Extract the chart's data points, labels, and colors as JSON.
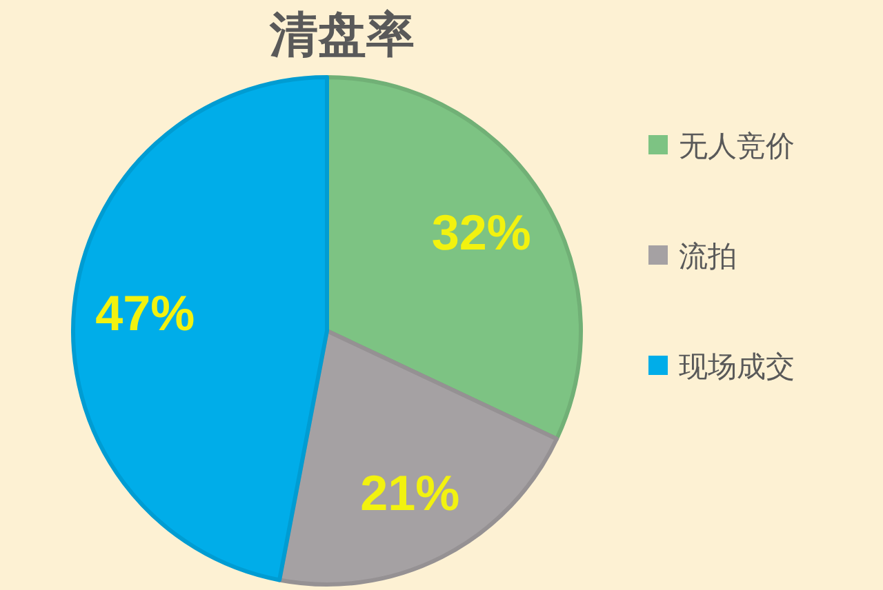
{
  "chart_data": {
    "type": "pie",
    "title": "清盘率",
    "categories": [
      "无人竞价",
      "流拍",
      "现场成交"
    ],
    "values": [
      32,
      21,
      47
    ],
    "colors": [
      "#7dc383",
      "#a5a1a3",
      "#00ade9"
    ],
    "value_labels": [
      "32%",
      "21%",
      "47%"
    ],
    "legend": "right"
  }
}
